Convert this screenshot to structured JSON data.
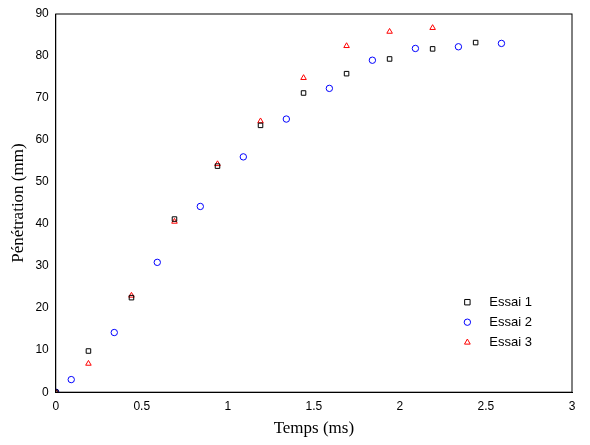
{
  "chart_data": {
    "type": "scatter",
    "x_label": "Temps (ms)",
    "y_label": "Pénétration (mm)",
    "xlim": [
      0,
      3
    ],
    "xticks": [
      0,
      0.5,
      1,
      1.5,
      2,
      2.5,
      3
    ],
    "ylim": [
      0,
      90
    ],
    "yticks": [
      0,
      10,
      20,
      30,
      40,
      50,
      60,
      70,
      80,
      90
    ],
    "grid": false,
    "legend": "lower right",
    "series": [
      {
        "name": "Essai 1",
        "color": "#000000",
        "marker": "square",
        "x": [
          0,
          0.19,
          0.44,
          0.69,
          0.94,
          1.19,
          1.44,
          1.69,
          1.94,
          2.19,
          2.44
        ],
        "values": [
          0,
          9.8,
          22.5,
          41.2,
          53.8,
          63.5,
          71.2,
          75.8,
          79.3,
          81.7,
          83.2
        ]
      },
      {
        "name": "Essai 2",
        "color": "#0000ff",
        "marker": "circle",
        "x": [
          0,
          0.09,
          0.34,
          0.59,
          0.84,
          1.09,
          1.34,
          1.59,
          1.84,
          2.09,
          2.34,
          2.59
        ],
        "values": [
          0,
          3.0,
          14.2,
          30.9,
          44.2,
          56.0,
          65.0,
          72.3,
          79.0,
          81.8,
          82.2,
          83.0
        ]
      },
      {
        "name": "Essai 3",
        "color": "#ff0000",
        "marker": "triangle",
        "x": [
          0,
          0.19,
          0.44,
          0.69,
          0.94,
          1.19,
          1.44,
          1.69,
          1.94,
          2.19
        ],
        "values": [
          0,
          6.8,
          23.0,
          40.6,
          54.3,
          64.5,
          74.8,
          82.4,
          85.8,
          86.7
        ]
      }
    ]
  }
}
